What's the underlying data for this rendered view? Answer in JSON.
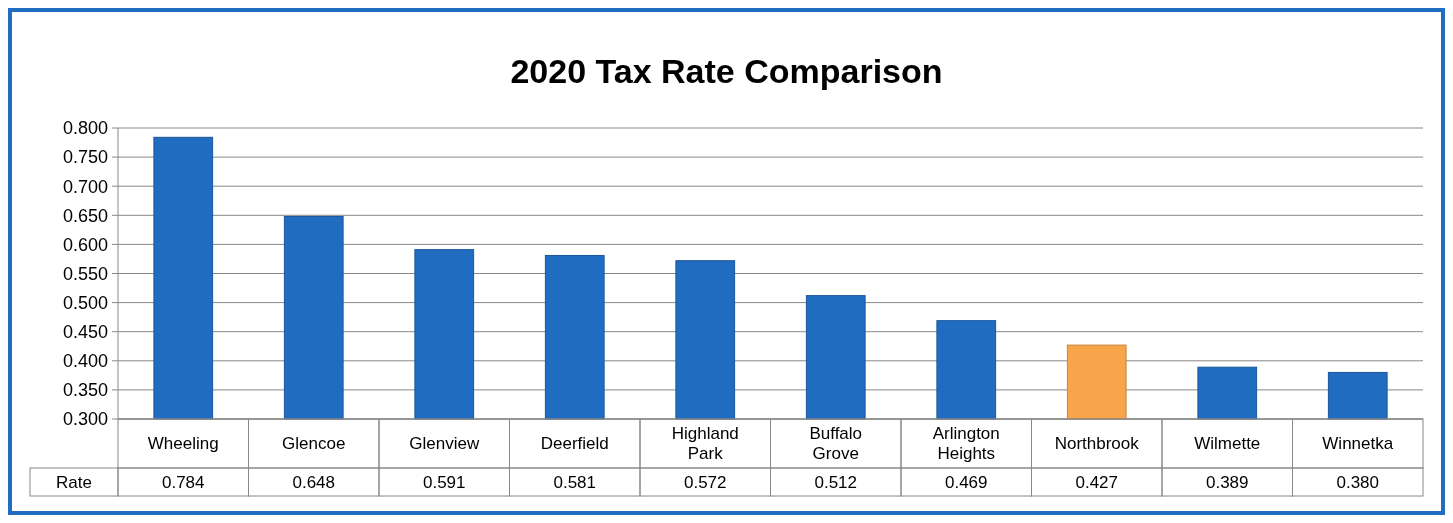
{
  "chart_data": {
    "type": "bar",
    "title": "2020 Tax Rate Comparison",
    "categories": [
      "Wheeling",
      "Glencoe",
      "Glenview",
      "Deerfield",
      "Highland Park",
      "Buffalo Grove",
      "Arlington Heights",
      "Northbrook",
      "Wilmette",
      "Winnetka"
    ],
    "series": [
      {
        "name": "Rate",
        "values": [
          0.784,
          0.648,
          0.591,
          0.581,
          0.572,
          0.512,
          0.469,
          0.427,
          0.389,
          0.38
        ],
        "value_labels": [
          "0.784",
          "0.648",
          "0.591",
          "0.581",
          "0.572",
          "0.512",
          "0.469",
          "0.427",
          "0.389",
          "0.380"
        ],
        "colors": [
          "#1f6cc0",
          "#1f6cc0",
          "#1f6cc0",
          "#1f6cc0",
          "#1f6cc0",
          "#1f6cc0",
          "#1f6cc0",
          "#f7a54a",
          "#1f6cc0",
          "#1f6cc0"
        ]
      }
    ],
    "ylim": [
      0.3,
      0.8
    ],
    "yticks": [
      {
        "value": 0.3,
        "label": "0.300"
      },
      {
        "value": 0.35,
        "label": "0.350"
      },
      {
        "value": 0.4,
        "label": "0.400"
      },
      {
        "value": 0.45,
        "label": "0.450"
      },
      {
        "value": 0.5,
        "label": "0.500"
      },
      {
        "value": 0.55,
        "label": "0.550"
      },
      {
        "value": 0.6,
        "label": "0.600"
      },
      {
        "value": 0.65,
        "label": "0.650"
      },
      {
        "value": 0.7,
        "label": "0.700"
      },
      {
        "value": 0.75,
        "label": "0.750"
      },
      {
        "value": 0.8,
        "label": "0.800"
      }
    ],
    "grid": "y"
  }
}
